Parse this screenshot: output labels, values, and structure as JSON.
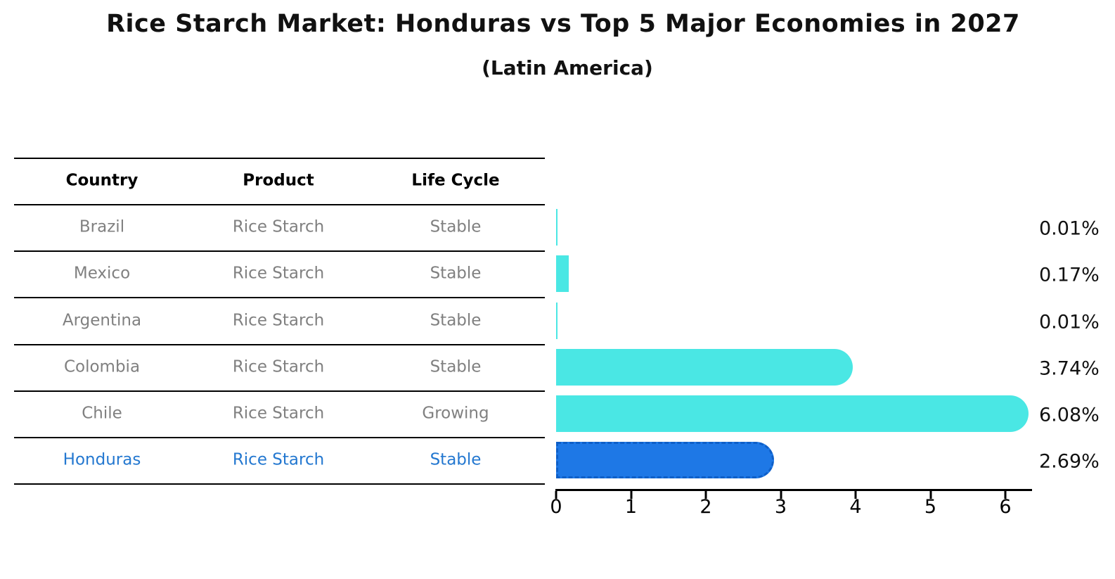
{
  "title": "Rice Starch Market: Honduras vs Top 5 Major Economies in 2027",
  "subtitle": "(Latin America)",
  "table": {
    "headers": [
      "Country",
      "Product",
      "Life Cycle"
    ],
    "rows": [
      {
        "country": "Brazil",
        "product": "Rice Starch",
        "life_cycle": "Stable",
        "highlight": false
      },
      {
        "country": "Mexico",
        "product": "Rice Starch",
        "life_cycle": "Stable",
        "highlight": false
      },
      {
        "country": "Argentina",
        "product": "Rice Starch",
        "life_cycle": "Stable",
        "highlight": false
      },
      {
        "country": "Colombia",
        "product": "Rice Starch",
        "life_cycle": "Stable",
        "highlight": false
      },
      {
        "country": "Chile",
        "product": "Rice Starch",
        "life_cycle": "Growing",
        "highlight": false
      },
      {
        "country": "Honduras",
        "product": "Rice Starch",
        "life_cycle": "Stable",
        "highlight": true
      }
    ]
  },
  "chart_data": {
    "type": "bar",
    "orientation": "horizontal",
    "title": "Rice Starch Market: Honduras vs Top 5 Major Economies in 2027",
    "subtitle": "(Latin America)",
    "categories": [
      "Brazil",
      "Mexico",
      "Argentina",
      "Colombia",
      "Chile",
      "Honduras"
    ],
    "values": [
      0.01,
      0.17,
      0.01,
      3.74,
      6.08,
      2.69
    ],
    "value_labels": [
      "0.01%",
      "0.17%",
      "0.01%",
      "3.74%",
      "6.08%",
      "2.69%"
    ],
    "x_ticks": [
      0,
      1,
      2,
      3,
      4,
      5,
      6
    ],
    "xlim": [
      0,
      6.35
    ],
    "grid": false,
    "legend": false,
    "highlight_category": "Honduras",
    "colors": {
      "bar": "#4AE7E4",
      "highlight_bar": "#1E78E6",
      "highlight_border": "#0E5FC8",
      "highlight_text": "#2478D0",
      "row_text": "#808080",
      "header_text": "#000000",
      "label_text": "#111111"
    }
  }
}
